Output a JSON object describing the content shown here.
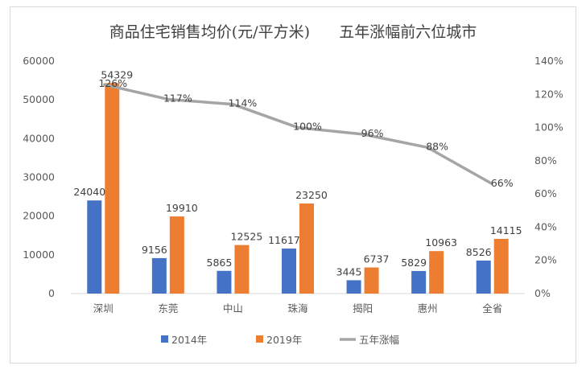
{
  "chart_data": {
    "type": "bar",
    "title": "商品住宅销售均价(元/平方米)      五年涨幅前六位城市",
    "categories": [
      "深圳",
      "东莞",
      "中山",
      "珠海",
      "揭阳",
      "惠州",
      "全省"
    ],
    "series": [
      {
        "name": "2014年",
        "type": "bar",
        "axis": "left",
        "color": "#4472C4",
        "values": [
          24040,
          9156,
          5865,
          11617,
          3445,
          5829,
          8526
        ]
      },
      {
        "name": "2019年",
        "type": "bar",
        "axis": "left",
        "color": "#ED7D31",
        "values": [
          54329,
          19910,
          12525,
          23250,
          6737,
          10963,
          14115
        ]
      },
      {
        "name": "五年涨幅",
        "type": "line",
        "axis": "right",
        "color": "#A5A5A5",
        "values": [
          126,
          117,
          114,
          100,
          96,
          88,
          66
        ],
        "labels": [
          "126%",
          "117%",
          "114%",
          "100%",
          "96%",
          "88%",
          "66%"
        ]
      }
    ],
    "left_axis": {
      "ylim": [
        0,
        60000
      ],
      "ticks": [
        "0",
        "10000",
        "20000",
        "30000",
        "40000",
        "50000",
        "60000"
      ]
    },
    "right_axis": {
      "ylim": [
        0,
        140
      ],
      "ticks": [
        "0%",
        "20%",
        "40%",
        "60%",
        "80%",
        "100%",
        "120%",
        "140%"
      ]
    },
    "grid": false,
    "legend": "bottom"
  }
}
